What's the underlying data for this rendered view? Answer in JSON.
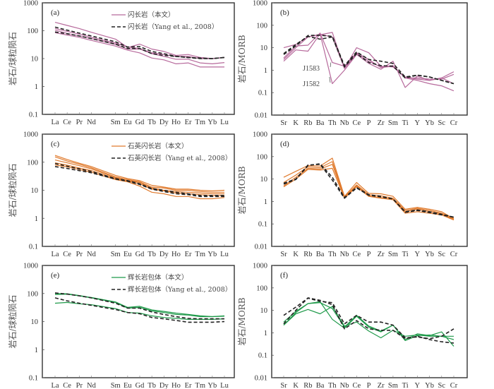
{
  "figure": {
    "colors": {
      "diorite": "#b76a9c",
      "quartz_diorite": "#e07b2e",
      "gabbro_enclave": "#1f9a4a",
      "reference": "#222222",
      "frame": "#333333"
    }
  },
  "chart_data": [
    {
      "id": "a",
      "type": "line",
      "panel_tag": "(a)",
      "ylabel": "岩石/球粒陨石",
      "xlabel": "",
      "yscale": "log",
      "ylim": [
        0.1,
        1000
      ],
      "yticks": [
        "0.1",
        "1",
        "10",
        "100",
        "1000"
      ],
      "categories": [
        "La",
        "Ce",
        "Pr",
        "Nd",
        "",
        "Sm",
        "Eu",
        "Gd",
        "Tb",
        "Dy",
        "Ho",
        "Er",
        "Tm",
        "Yb",
        "Lu"
      ],
      "legend": [
        {
          "label": "闪长岩（本文）",
          "style": "solid",
          "color_key": "diorite"
        },
        {
          "label": "闪长岩（Yang et al., 2008）",
          "style": "dashed",
          "color_key": "reference"
        }
      ],
      "legend_position": "top-right",
      "series": [
        {
          "group": "this_study",
          "values": [
            200,
            155,
            120,
            88,
            null,
            50,
            25,
            33,
            22,
            18,
            13,
            14,
            11,
            10,
            11
          ]
        },
        {
          "group": "this_study",
          "values": [
            120,
            95,
            75,
            58,
            null,
            36,
            26,
            23,
            16,
            14,
            12,
            12,
            10,
            10,
            11
          ]
        },
        {
          "group": "this_study",
          "values": [
            105,
            80,
            65,
            52,
            null,
            32,
            22,
            22,
            15,
            12,
            9.5,
            9.5,
            7,
            6.5,
            7.2
          ]
        },
        {
          "group": "this_study",
          "values": [
            85,
            70,
            58,
            45,
            null,
            28,
            20,
            16,
            10.5,
            9,
            6.5,
            7,
            5,
            5,
            5
          ]
        },
        {
          "group": "reference",
          "values": [
            135,
            105,
            82,
            65,
            null,
            40,
            26,
            27,
            18,
            15,
            12,
            11,
            10.5,
            10,
            11
          ]
        },
        {
          "group": "reference",
          "values": [
            90,
            78,
            65,
            52,
            null,
            33,
            23,
            23,
            15,
            13,
            12,
            11,
            10,
            10,
            11
          ]
        }
      ]
    },
    {
      "id": "b",
      "type": "line",
      "panel_tag": "(b)",
      "ylabel": "岩石/MORB",
      "xlabel": "",
      "yscale": "log",
      "ylim": [
        0.01,
        1000
      ],
      "yticks": [
        "0.01",
        "0.1",
        "1",
        "10",
        "100",
        "1000"
      ],
      "categories": [
        "Sr",
        "K",
        "Rb",
        "Ba",
        "Th",
        "Nb",
        "Ce",
        "P",
        "Zr",
        "Sm",
        "Ti",
        "Y",
        "Yb",
        "Sc",
        "Cr"
      ],
      "annotations": [
        {
          "text": "J1583",
          "points_to": "Th"
        },
        {
          "text": "J1582",
          "points_to": "Th"
        }
      ],
      "series": [
        {
          "group": "this_study",
          "values": [
            10,
            14,
            30,
            38,
            48,
            1.2,
            10,
            6,
            1.5,
            1.4,
            0.5,
            0.4,
            0.35,
            0.45,
            0.85
          ]
        },
        {
          "group": "this_study",
          "values": [
            3.5,
            12,
            13,
            45,
            2.2,
            1.5,
            6,
            3,
            1.3,
            1.5,
            0.45,
            0.45,
            0.4,
            0.4,
            0.65
          ]
        },
        {
          "group": "this_study",
          "values": [
            2.5,
            8,
            7,
            42,
            0.25,
            1.0,
            5,
            2.0,
            1.1,
            2.5,
            0.17,
            0.55,
            0.35,
            0.45,
            0.25
          ]
        },
        {
          "group": "this_study",
          "values": [
            3,
            10,
            30,
            40,
            30,
            1.2,
            5.5,
            2.5,
            1.4,
            1.6,
            0.45,
            0.35,
            0.25,
            0.2,
            0.12
          ]
        },
        {
          "group": "reference",
          "values": [
            5,
            12,
            35,
            36,
            32,
            1.6,
            6.5,
            3,
            2.5,
            2,
            0.5,
            0.6,
            0.5,
            0.35,
            0.25
          ]
        },
        {
          "group": "reference",
          "values": [
            5.5,
            14,
            32,
            24,
            30,
            1.4,
            5.5,
            2.2,
            1.6,
            1.5,
            0.45,
            0.6,
            0.5,
            0.35,
            0.25
          ]
        }
      ]
    },
    {
      "id": "c",
      "type": "line",
      "panel_tag": "(c)",
      "ylabel": "岩石/球粒陨石",
      "xlabel": "",
      "yscale": "log",
      "ylim": [
        0.1,
        1000
      ],
      "yticks": [
        "0.1",
        "1",
        "10",
        "100",
        "1000"
      ],
      "categories": [
        "La",
        "Ce",
        "Pr",
        "Nd",
        "",
        "Sm",
        "Eu",
        "Gd",
        "Tb",
        "Dy",
        "Ho",
        "Er",
        "Tm",
        "Yb",
        "Lu"
      ],
      "legend": [
        {
          "label": "石英闪长岩（本文）",
          "style": "solid",
          "color_key": "quartz_diorite"
        },
        {
          "label": "石英闪长岩（Yang et al., 2008）",
          "style": "dashed",
          "color_key": "reference"
        }
      ],
      "legend_position": "top-right",
      "series": [
        {
          "group": "this_study",
          "values": [
            175,
            125,
            92,
            70,
            null,
            34,
            26,
            22,
            15,
            13,
            11,
            11,
            10,
            9.5,
            10
          ]
        },
        {
          "group": "this_study",
          "values": [
            155,
            110,
            85,
            63,
            null,
            30,
            24,
            20,
            13,
            12,
            10,
            10,
            9,
            8.5,
            8.5
          ]
        },
        {
          "group": "this_study",
          "values": [
            120,
            95,
            75,
            58,
            null,
            28,
            22,
            19,
            12,
            10,
            9,
            8.5,
            8,
            7.5,
            7.5
          ]
        },
        {
          "group": "this_study",
          "values": [
            95,
            78,
            62,
            50,
            null,
            26,
            21,
            17,
            11,
            9.5,
            8,
            7.5,
            7,
            6.5,
            6.5
          ]
        },
        {
          "group": "this_study",
          "values": [
            80,
            68,
            55,
            44,
            null,
            24,
            20,
            14,
            8.5,
            7.5,
            6,
            6,
            5,
            5,
            5.5
          ]
        },
        {
          "group": "reference",
          "values": [
            90,
            72,
            58,
            47,
            null,
            26,
            22,
            17,
            11.5,
            10,
            8.5,
            7.5,
            6.5,
            6.5,
            6.5
          ]
        },
        {
          "group": "reference",
          "values": [
            70,
            60,
            50,
            42,
            null,
            25,
            21,
            16,
            11,
            9,
            7.5,
            7,
            6,
            6,
            6
          ]
        }
      ]
    },
    {
      "id": "d",
      "type": "line",
      "panel_tag": "(d)",
      "ylabel": "岩石/MORB",
      "xlabel": "",
      "yscale": "log",
      "ylim": [
        0.01,
        1000
      ],
      "yticks": [
        "0.01",
        "0.1",
        "1",
        "10",
        "100",
        "1000"
      ],
      "categories": [
        "Sr",
        "K",
        "Rb",
        "Ba",
        "Th",
        "Nb",
        "Ce",
        "P",
        "Zr",
        "Sm",
        "Ti",
        "Y",
        "Yb",
        "Sc",
        "Cr"
      ],
      "series": [
        {
          "group": "this_study",
          "values": [
            12,
            22,
            40,
            38,
            85,
            1.7,
            7,
            2.3,
            2.2,
            1.7,
            0.45,
            0.55,
            0.45,
            0.35,
            0.17
          ]
        },
        {
          "group": "this_study",
          "values": [
            7,
            15,
            35,
            32,
            60,
            1.6,
            5.5,
            2.0,
            1.8,
            1.4,
            0.4,
            0.5,
            0.4,
            0.3,
            0.18
          ]
        },
        {
          "group": "this_study",
          "values": [
            5,
            12,
            30,
            28,
            45,
            1.5,
            5,
            1.8,
            1.5,
            1.3,
            0.35,
            0.45,
            0.35,
            0.28,
            0.16
          ]
        },
        {
          "group": "this_study",
          "values": [
            4.5,
            10,
            27,
            25,
            30,
            1.4,
            4.5,
            1.7,
            1.4,
            1.2,
            0.3,
            0.35,
            0.3,
            0.25,
            0.15
          ]
        },
        {
          "group": "reference",
          "values": [
            6.5,
            10,
            42,
            45,
            9,
            1.4,
            4,
            1.9,
            1.6,
            1.3,
            0.35,
            0.42,
            0.35,
            0.27,
            0.2
          ]
        },
        {
          "group": "reference",
          "values": [
            6,
            9.5,
            40,
            48,
            12,
            1.5,
            4.2,
            2.0,
            1.7,
            1.3,
            0.33,
            0.4,
            0.32,
            0.25,
            0.2
          ]
        }
      ]
    },
    {
      "id": "e",
      "type": "line",
      "panel_tag": "(e)",
      "ylabel": "岩石/球粒陨石",
      "xlabel": "",
      "yscale": "log",
      "ylim": [
        0.1,
        1000
      ],
      "yticks": [
        "0.1",
        "1",
        "10",
        "100",
        "1000"
      ],
      "categories": [
        "La",
        "Ce",
        "Pr",
        "Nd",
        "",
        "Sm",
        "Eu",
        "Gd",
        "Tb",
        "Dy",
        "Ho",
        "Er",
        "Tm",
        "Yb",
        "Lu"
      ],
      "legend": [
        {
          "label": "辉长岩包体（本文）",
          "style": "solid",
          "color_key": "gabbro_enclave"
        },
        {
          "label": "辉长岩包体（Yang et al., 2008）",
          "style": "dashed",
          "color_key": "reference"
        }
      ],
      "legend_position": "top-right",
      "series": [
        {
          "group": "this_study",
          "values": [
            100,
            98,
            85,
            72,
            null,
            50,
            32,
            35,
            26,
            23,
            20,
            18,
            16,
            15,
            16
          ]
        },
        {
          "group": "this_study",
          "values": [
            92,
            95,
            83,
            70,
            null,
            48,
            30,
            32,
            24,
            21,
            18,
            17,
            15,
            15,
            15.5
          ]
        },
        {
          "group": "this_study",
          "values": [
            45,
            48,
            43,
            40,
            null,
            29,
            21,
            20,
            16,
            14,
            13,
            12,
            12,
            12,
            12.5
          ]
        },
        {
          "group": "reference",
          "values": [
            105,
            95,
            83,
            70,
            null,
            45,
            30,
            30,
            22,
            18,
            15,
            13,
            12.5,
            12.5,
            12.5
          ]
        },
        {
          "group": "reference",
          "values": [
            70,
            55,
            45,
            38,
            null,
            27,
            21,
            19,
            14,
            12.5,
            11,
            9.5,
            9.5,
            9.5,
            10
          ]
        }
      ]
    },
    {
      "id": "f",
      "type": "line",
      "panel_tag": "(f)",
      "ylabel": "岩石/MORB",
      "xlabel": "",
      "yscale": "log",
      "ylim": [
        0.01,
        1000
      ],
      "yticks": [
        "0.01",
        "0.1",
        "1",
        "10",
        "100",
        "1000"
      ],
      "categories": [
        "Sr",
        "K",
        "Rb",
        "Ba",
        "Th",
        "Nb",
        "Ce",
        "P",
        "Zr",
        "Sm",
        "Ti",
        "Y",
        "Yb",
        "Sc",
        "Cr"
      ],
      "series": [
        {
          "group": "this_study",
          "values": [
            3,
            9,
            20,
            22,
            12,
            1.8,
            6,
            2,
            1.2,
            2.2,
            0.5,
            0.9,
            0.75,
            1.1,
            0.25
          ]
        },
        {
          "group": "this_study",
          "values": [
            2.2,
            7,
            11,
            7,
            15,
            2,
            3,
            1.2,
            0.6,
            1.3,
            0.7,
            0.8,
            0.7,
            0.7,
            0.7
          ]
        },
        {
          "group": "this_study",
          "values": [
            2.2,
            8,
            20,
            24,
            4,
            1.6,
            5.5,
            1.8,
            1.1,
            2.2,
            0.45,
            0.75,
            0.8,
            0.7,
            0.5
          ]
        },
        {
          "group": "reference",
          "values": [
            6,
            14,
            35,
            25,
            22,
            2.5,
            6,
            3,
            3,
            2.2,
            0.6,
            0.65,
            0.55,
            0.7,
            1.5
          ]
        },
        {
          "group": "reference",
          "values": [
            2.5,
            10,
            36,
            28,
            18,
            1.5,
            3.5,
            1.5,
            1.3,
            1.3,
            0.55,
            0.7,
            0.5,
            0.4,
            0.35
          ]
        }
      ]
    }
  ]
}
